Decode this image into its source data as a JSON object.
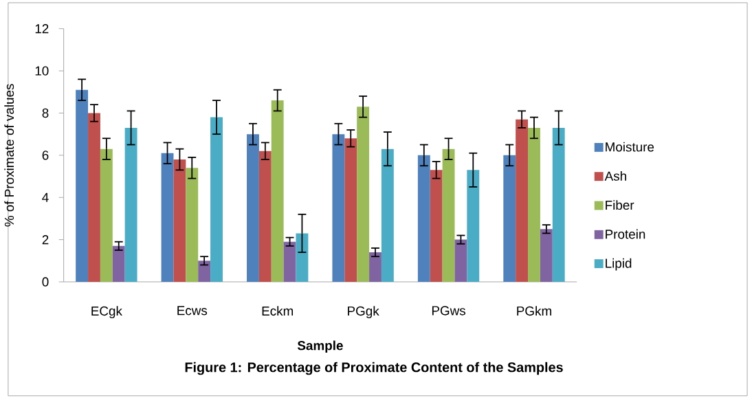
{
  "chart_data": {
    "type": "bar",
    "title": "Figure 1: Percentage of Proximate Content of the Samples",
    "xlabel": "Sample",
    "ylabel": "% of Proximate of values",
    "categories": [
      "ECgk",
      "Ecws",
      "Eckm",
      "PGgk",
      "PGws",
      "PGkm"
    ],
    "series": [
      {
        "name": "Moisture",
        "color": "#4f81bd",
        "values": [
          9.1,
          6.1,
          7.0,
          7.0,
          6.0,
          6.0
        ],
        "errors": [
          0.5,
          0.5,
          0.5,
          0.5,
          0.5,
          0.5
        ]
      },
      {
        "name": "Ash",
        "color": "#c0504d",
        "values": [
          8.0,
          5.8,
          6.2,
          6.8,
          5.3,
          7.7
        ],
        "errors": [
          0.4,
          0.5,
          0.4,
          0.4,
          0.4,
          0.4
        ]
      },
      {
        "name": "Fiber",
        "color": "#9bbb59",
        "values": [
          6.3,
          5.4,
          8.6,
          8.3,
          6.3,
          7.3
        ],
        "errors": [
          0.5,
          0.5,
          0.5,
          0.5,
          0.5,
          0.5
        ]
      },
      {
        "name": "Protein",
        "color": "#8064a2",
        "values": [
          1.7,
          1.0,
          1.9,
          1.4,
          2.0,
          2.5
        ],
        "errors": [
          0.2,
          0.2,
          0.2,
          0.2,
          0.2,
          0.2
        ]
      },
      {
        "name": "Lipid",
        "color": "#4bacc6",
        "values": [
          7.3,
          7.8,
          2.3,
          6.3,
          5.3,
          7.3
        ],
        "errors": [
          0.8,
          0.8,
          0.9,
          0.8,
          0.8,
          0.8
        ]
      }
    ],
    "ylim": [
      0,
      12
    ],
    "yticks": [
      0,
      2,
      4,
      6,
      8,
      10,
      12
    ],
    "legend": "right"
  }
}
